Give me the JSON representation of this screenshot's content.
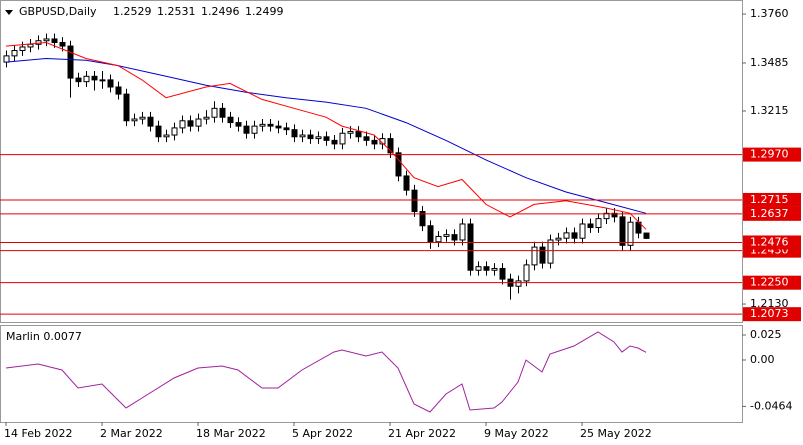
{
  "chart_data": [
    {
      "type": "candlestick",
      "title": "GBPUSD,Daily",
      "categories": [
        "14 Feb 2022",
        null,
        null,
        null,
        null,
        null,
        null,
        null,
        null,
        null,
        null,
        null,
        "2 Mar 2022",
        null,
        null,
        null,
        null,
        null,
        null,
        null,
        null,
        null,
        null,
        null,
        "18 Mar 2022",
        null,
        null,
        null,
        null,
        null,
        null,
        null,
        null,
        null,
        null,
        null,
        "5 Apr 2022",
        null,
        null,
        null,
        null,
        null,
        null,
        null,
        null,
        null,
        null,
        null,
        "21 Apr 2022",
        null,
        null,
        null,
        null,
        null,
        null,
        null,
        null,
        null,
        null,
        null,
        "9 May 2022",
        null,
        null,
        null,
        null,
        null,
        null,
        null,
        null,
        null,
        null,
        null,
        "25 May 2022",
        null,
        null,
        null,
        null,
        null,
        null,
        null,
        null
      ],
      "open": [
        1.349,
        1.3525,
        1.3555,
        1.3575,
        1.359,
        1.361,
        1.362,
        1.36,
        1.358,
        1.34,
        1.338,
        1.341,
        1.339,
        1.339,
        1.335,
        1.331,
        1.316,
        1.317,
        1.318,
        1.313,
        1.307,
        1.308,
        1.312,
        1.316,
        1.313,
        1.317,
        1.318,
        1.323,
        1.318,
        1.315,
        1.313,
        1.309,
        1.313,
        1.314,
        1.313,
        1.312,
        1.311,
        1.307,
        1.308,
        1.306,
        1.307,
        1.305,
        1.303,
        1.309,
        1.31,
        1.307,
        1.305,
        1.303,
        1.306,
        1.298,
        1.285,
        1.277,
        1.265,
        1.257,
        1.248,
        1.251,
        1.252,
        1.249,
        1.258,
        1.232,
        1.234,
        1.232,
        1.233,
        1.227,
        1.223,
        1.226,
        1.235,
        1.245,
        1.236,
        1.249,
        1.25,
        1.253,
        1.25,
        1.258,
        1.256,
        1.261,
        1.264,
        1.262,
        1.246,
        1.259,
        1.2529
      ],
      "high": [
        1.3555,
        1.3585,
        1.3605,
        1.362,
        1.364,
        1.365,
        1.365,
        1.363,
        1.361,
        1.343,
        1.344,
        1.344,
        1.344,
        1.342,
        1.338,
        1.334,
        1.32,
        1.321,
        1.321,
        1.316,
        1.311,
        1.315,
        1.319,
        1.319,
        1.32,
        1.322,
        1.327,
        1.326,
        1.321,
        1.318,
        1.316,
        1.316,
        1.317,
        1.317,
        1.316,
        1.315,
        1.314,
        1.311,
        1.311,
        1.31,
        1.31,
        1.308,
        1.312,
        1.313,
        1.313,
        1.31,
        1.308,
        1.309,
        1.309,
        1.301,
        1.288,
        1.28,
        1.268,
        1.26,
        1.254,
        1.255,
        1.255,
        1.261,
        1.261,
        1.237,
        1.237,
        1.236,
        1.236,
        1.23,
        1.229,
        1.238,
        1.248,
        1.248,
        1.252,
        1.253,
        1.256,
        1.256,
        1.261,
        1.261,
        1.264,
        1.267,
        1.267,
        1.265,
        1.262,
        1.262,
        1.2531
      ],
      "low": [
        1.346,
        1.3495,
        1.3525,
        1.3545,
        1.356,
        1.358,
        1.357,
        1.355,
        1.329,
        1.335,
        1.335,
        1.333,
        1.334,
        1.332,
        1.328,
        1.313,
        1.313,
        1.314,
        1.31,
        1.304,
        1.304,
        1.305,
        1.309,
        1.31,
        1.31,
        1.314,
        1.315,
        1.315,
        1.312,
        1.31,
        1.306,
        1.306,
        1.31,
        1.31,
        1.309,
        1.308,
        1.304,
        1.304,
        1.303,
        1.303,
        1.302,
        1.3,
        1.3,
        1.306,
        1.304,
        1.302,
        1.3,
        1.3,
        1.295,
        1.282,
        1.274,
        1.262,
        1.254,
        1.244,
        1.245,
        1.248,
        1.246,
        1.246,
        1.229,
        1.229,
        1.229,
        1.229,
        1.224,
        1.2155,
        1.219,
        1.223,
        1.232,
        1.233,
        1.233,
        1.246,
        1.247,
        1.247,
        1.247,
        1.253,
        1.253,
        1.258,
        1.259,
        1.243,
        1.243,
        1.25,
        1.2496
      ],
      "close": [
        1.3525,
        1.3555,
        1.3575,
        1.359,
        1.361,
        1.362,
        1.36,
        1.358,
        1.34,
        1.338,
        1.341,
        1.339,
        1.339,
        1.335,
        1.331,
        1.316,
        1.317,
        1.318,
        1.313,
        1.307,
        1.308,
        1.312,
        1.316,
        1.313,
        1.317,
        1.318,
        1.323,
        1.318,
        1.315,
        1.313,
        1.309,
        1.313,
        1.314,
        1.313,
        1.312,
        1.311,
        1.307,
        1.308,
        1.306,
        1.307,
        1.305,
        1.303,
        1.309,
        1.31,
        1.307,
        1.305,
        1.303,
        1.306,
        1.298,
        1.285,
        1.277,
        1.265,
        1.257,
        1.248,
        1.251,
        1.252,
        1.249,
        1.258,
        1.232,
        1.234,
        1.232,
        1.233,
        1.227,
        1.223,
        1.226,
        1.235,
        1.245,
        1.236,
        1.249,
        1.25,
        1.253,
        1.25,
        1.258,
        1.256,
        1.261,
        1.264,
        1.262,
        1.246,
        1.259,
        1.2529,
        1.2499
      ],
      "series": [
        {
          "color": "#0000d0",
          "x": [
            0,
            5,
            10,
            14,
            20,
            25,
            30,
            35,
            40,
            45,
            50,
            55,
            60,
            65,
            70,
            75,
            80
          ],
          "values": [
            1.349,
            1.351,
            1.35,
            1.347,
            1.341,
            1.336,
            1.332,
            1.329,
            1.3265,
            1.323,
            1.315,
            1.305,
            1.294,
            1.284,
            1.276,
            1.27,
            1.264
          ]
        },
        {
          "color": "#ff0000",
          "x": [
            0,
            5,
            10,
            14,
            17,
            20,
            25,
            28,
            32,
            36,
            40,
            42,
            46,
            48,
            51,
            54,
            57,
            60,
            63,
            66,
            70,
            75,
            78,
            80
          ],
          "values": [
            1.358,
            1.36,
            1.351,
            1.347,
            1.339,
            1.329,
            1.335,
            1.337,
            1.328,
            1.323,
            1.318,
            1.313,
            1.308,
            1.2995,
            1.284,
            1.279,
            1.283,
            1.269,
            1.262,
            1.269,
            1.271,
            1.267,
            1.264,
            1.255
          ]
        }
      ],
      "levels": [
        {
          "value": 1.297,
          "label": "1.2970"
        },
        {
          "value": 1.2715,
          "label": "1.2715"
        },
        {
          "value": 1.2637,
          "label": "1.2637"
        },
        {
          "value": 1.243,
          "label": "1.2430"
        },
        {
          "value": 1.2476,
          "label": "1.2476"
        },
        {
          "value": 1.225,
          "label": "1.2250"
        },
        {
          "value": 1.2073,
          "label": "1.2073"
        }
      ],
      "level_color": "#e00000",
      "ylim": [
        1.2029,
        1.3839
      ],
      "yticks": [
        {
          "value": 1.376,
          "label": "1.3760"
        },
        {
          "value": 1.3485,
          "label": "1.3485"
        },
        {
          "value": 1.3215,
          "label": "1.3215"
        },
        {
          "value": 1.213,
          "label": "1.2130"
        }
      ]
    },
    {
      "type": "line",
      "title": "Marlin 0.0077",
      "x": [
        0,
        4,
        7,
        9,
        12,
        15,
        17,
        21,
        24,
        27,
        29,
        32,
        34,
        37,
        41,
        42,
        45,
        47,
        49,
        51,
        53,
        55,
        57,
        58,
        61,
        62,
        64,
        65,
        67,
        68,
        71,
        74,
        76,
        77,
        78,
        79,
        80
      ],
      "values": [
        -0.008,
        -0.004,
        -0.01,
        -0.028,
        -0.024,
        -0.048,
        -0.038,
        -0.018,
        -0.008,
        -0.006,
        -0.01,
        -0.028,
        -0.028,
        -0.01,
        0.008,
        0.01,
        0.004,
        0.008,
        -0.008,
        -0.044,
        -0.052,
        -0.034,
        -0.024,
        -0.05,
        -0.048,
        -0.042,
        -0.022,
        0.0,
        -0.012,
        0.006,
        0.014,
        0.028,
        0.018,
        0.008,
        0.014,
        0.012,
        0.0077
      ],
      "color": "#a020a0",
      "ylim": [
        -0.062,
        0.035
      ],
      "yticks": [
        0.025,
        {
          "value": 0,
          "label": "0.00"
        },
        -0.0464
      ]
    }
  ]
}
